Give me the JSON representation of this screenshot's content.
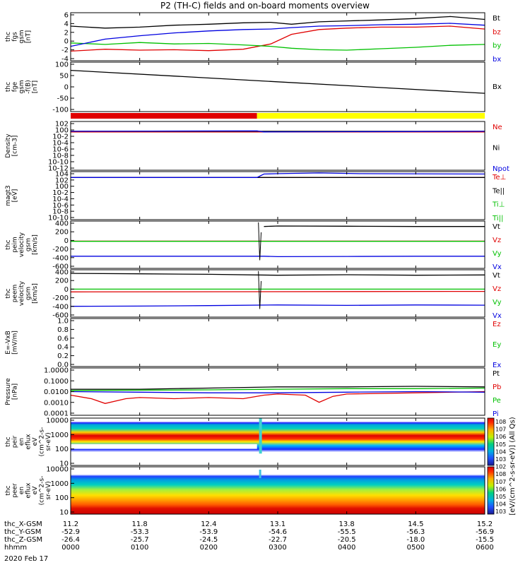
{
  "title": "P2 (TH-C) fields and on-board moments overview",
  "date_label": "2020 Feb 17",
  "colorbar_label": "[eV/(cm^2-s-sr-eV)] (All Qs)",
  "colorbar_ticks": [
    "10^8",
    "10^7",
    "10^6",
    "10^5",
    "10^4",
    "10^3",
    "10^2",
    "10^8",
    "10^7",
    "10^6",
    "10^5",
    "10^4",
    "10^3"
  ],
  "footer": {
    "rows": [
      {
        "label": "thc_X-GSM",
        "values": [
          "11.2",
          "11.8",
          "12.4",
          "13.1",
          "13.8",
          "14.5",
          "15.2"
        ]
      },
      {
        "label": "thc_Y-GSM",
        "values": [
          "-52.9",
          "-53.3",
          "-53.9",
          "-54.6",
          "-55.5",
          "-56.3",
          "-56.9"
        ]
      },
      {
        "label": "thc_Z-GSM",
        "values": [
          "-26.4",
          "-25.7",
          "-24.5",
          "-22.7",
          "-20.5",
          "-18.0",
          "-15.5"
        ]
      },
      {
        "label": "hhmm",
        "values": [
          "0000",
          "0100",
          "0200",
          "0300",
          "0400",
          "0500",
          "0600"
        ]
      }
    ]
  },
  "chart_data": [
    {
      "type": "line",
      "ylabel": [
        "thc",
        "fgs",
        "gsm",
        "[nT]"
      ],
      "yticks": [
        "6",
        "4",
        "2",
        "0",
        "-2",
        "-4"
      ],
      "ylim": [
        -4,
        6
      ],
      "legend": [
        {
          "name": "Bt",
          "color": "#000000"
        },
        {
          "name": "bz",
          "color": "#e00000"
        },
        {
          "name": "by",
          "color": "#00c000"
        },
        {
          "name": "bx",
          "color": "#0000e0"
        }
      ],
      "series": [
        {
          "name": "Bt",
          "color": "#000000",
          "x": [
            0,
            0.5,
            1,
            1.5,
            2,
            2.5,
            2.9,
            3.2,
            3.6,
            4,
            4.5,
            5,
            5.5,
            6
          ],
          "values": [
            3.2,
            2.8,
            3.0,
            3.4,
            3.6,
            3.9,
            4.0,
            3.6,
            4.1,
            4.3,
            4.5,
            4.8,
            5.2,
            4.6
          ]
        },
        {
          "name": "bz",
          "color": "#e00000",
          "x": [
            0,
            0.5,
            1,
            1.5,
            2,
            2.5,
            2.9,
            3.2,
            3.6,
            4,
            4.5,
            5,
            5.5,
            6
          ],
          "values": [
            -2.0,
            -1.6,
            -1.8,
            -1.7,
            -1.9,
            -1.6,
            -0.5,
            1.5,
            2.5,
            2.8,
            3.0,
            3.0,
            3.2,
            2.6
          ]
        },
        {
          "name": "by",
          "color": "#00c000",
          "x": [
            0,
            0.5,
            1,
            1.5,
            2,
            2.5,
            2.9,
            3.2,
            3.6,
            4,
            4.5,
            5,
            5.5,
            6
          ],
          "values": [
            -0.3,
            -0.6,
            -0.2,
            -0.5,
            -0.4,
            -0.7,
            -1.0,
            -1.4,
            -1.7,
            -1.8,
            -1.5,
            -1.2,
            -0.8,
            -0.6
          ]
        },
        {
          "name": "bx",
          "color": "#0000e0",
          "x": [
            0,
            0.5,
            1,
            1.5,
            2,
            2.5,
            2.9,
            3.2,
            3.6,
            4,
            4.5,
            5,
            5.5,
            6
          ],
          "values": [
            -1.0,
            0.5,
            1.2,
            1.8,
            2.2,
            2.5,
            2.6,
            2.9,
            3.2,
            3.3,
            3.5,
            3.6,
            3.8,
            3.4
          ]
        }
      ]
    },
    {
      "type": "line",
      "ylabel": [
        "thc",
        "fge",
        "gsm",
        "-f(B)",
        "[nT]"
      ],
      "yticks": [
        "100",
        "50",
        "0",
        "-50",
        "-100"
      ],
      "ylim": [
        -130,
        100
      ],
      "legend": [
        {
          "name": "Bx",
          "color": "#000000"
        }
      ],
      "series": [
        {
          "name": "Bx",
          "color": "#000000",
          "x": [
            0,
            6
          ],
          "values": [
            62,
            -45
          ]
        }
      ]
    },
    {
      "type": "bar",
      "name": "mode bar",
      "segments": [
        {
          "x0": 0,
          "x1": 2.7,
          "color": "#e00000"
        },
        {
          "x0": 2.7,
          "x1": 6,
          "color": "#ffff00"
        }
      ]
    },
    {
      "type": "line",
      "scale": "log",
      "ylabel": [
        "Density",
        "[cm-3]"
      ],
      "yticks": [
        "10^2",
        "10^0",
        "10^-2",
        "10^-4",
        "10^-6",
        "10^-8",
        "10^-10",
        "10^-12"
      ],
      "ylim": [
        -12,
        2
      ],
      "legend": [
        {
          "name": "Ne",
          "color": "#e00000"
        },
        {
          "name": "Ni",
          "color": "#000000"
        },
        {
          "name": "Npot",
          "color": "#0000e0"
        }
      ],
      "series": [
        {
          "name": "Ne",
          "color": "#e00000",
          "x": [
            0,
            6
          ],
          "values": [
            0.1,
            0.1
          ]
        },
        {
          "name": "Ni",
          "color": "#000000",
          "x": [
            0,
            6
          ],
          "values": [
            0.15,
            0.15
          ]
        },
        {
          "name": "Npot",
          "color": "#0000e0",
          "x": [
            0,
            2.7,
            2.8,
            6
          ],
          "values": [
            0.15,
            0.2,
            0.1,
            0.15
          ]
        }
      ]
    },
    {
      "type": "line",
      "scale": "log",
      "ylabel": [
        "magt3",
        "[eV]"
      ],
      "yticks": [
        "10^4",
        "10^2",
        "10^0",
        "10^-2",
        "10^-4",
        "10^-6",
        "10^-8",
        "10^-10"
      ],
      "ylim": [
        -10,
        4
      ],
      "legend": [
        {
          "name": "Te⊥",
          "color": "#e00000"
        },
        {
          "name": "Te||",
          "color": "#000000"
        },
        {
          "name": "Ti⊥",
          "color": "#00c000"
        },
        {
          "name": "Ti||",
          "color": "#00c000"
        }
      ],
      "series": [
        {
          "name": "Te⊥",
          "color": "#e00000",
          "x": [
            0,
            6
          ],
          "values": [
            2.3,
            2.3
          ]
        },
        {
          "name": "Te||",
          "color": "#000000",
          "x": [
            0,
            6
          ],
          "values": [
            2.3,
            2.3
          ]
        },
        {
          "name": "Ti⊥",
          "color": "#0000e0",
          "x": [
            0,
            2.7,
            2.8,
            3.0,
            3.6,
            4.2,
            6
          ],
          "values": [
            2.3,
            2.3,
            3.3,
            3.4,
            3.6,
            3.4,
            3.3
          ]
        }
      ]
    },
    {
      "type": "line",
      "ylabel": [
        "thc",
        "peim",
        "velocity",
        "gsm",
        "[km/s]"
      ],
      "yticks": [
        "400",
        "200",
        "0",
        "-200",
        "-400",
        "-600"
      ],
      "ylim": [
        -600,
        450
      ],
      "legend": [
        {
          "name": "Vt",
          "color": "#000000"
        },
        {
          "name": "Vz",
          "color": "#e00000"
        },
        {
          "name": "Vy",
          "color": "#00c000"
        },
        {
          "name": "Vx",
          "color": "#0000e0"
        }
      ],
      "series": [
        {
          "name": "Vt",
          "color": "#000000",
          "x": [
            2.8,
            3.0,
            4,
            5,
            6
          ],
          "values": [
            330,
            340,
            335,
            330,
            330
          ]
        },
        {
          "name": "Vz",
          "color": "#e00000",
          "x": [
            0,
            6
          ],
          "values": [
            5,
            5
          ]
        },
        {
          "name": "Vy",
          "color": "#00c000",
          "x": [
            0,
            6
          ],
          "values": [
            0,
            0
          ]
        },
        {
          "name": "Vx",
          "color": "#0000e0",
          "x": [
            0,
            1,
            2,
            2.8,
            3.0,
            4,
            5,
            6
          ],
          "values": [
            -330,
            -330,
            -330,
            -330,
            -340,
            -335,
            -330,
            -330
          ]
        }
      ]
    },
    {
      "type": "line",
      "ylabel": [
        "thc",
        "peem",
        "velocity",
        "gsm",
        "[km/s]"
      ],
      "yticks": [
        "400",
        "200",
        "0",
        "-200",
        "-400",
        "-600"
      ],
      "ylim": [
        -600,
        450
      ],
      "legend": [
        {
          "name": "Vt",
          "color": "#000000"
        },
        {
          "name": "Vz",
          "color": "#e00000"
        },
        {
          "name": "Vy",
          "color": "#00c000"
        },
        {
          "name": "Vx",
          "color": "#0000e0"
        }
      ],
      "series": [
        {
          "name": "Vt",
          "color": "#000000",
          "x": [
            0,
            1,
            2,
            3,
            4,
            5,
            6
          ],
          "values": [
            370,
            360,
            350,
            330,
            340,
            330,
            335
          ]
        },
        {
          "name": "Vz",
          "color": "#e00000",
          "x": [
            0,
            6
          ],
          "values": [
            -40,
            -30
          ]
        },
        {
          "name": "Vy",
          "color": "#00c000",
          "x": [
            0,
            6
          ],
          "values": [
            20,
            20
          ]
        },
        {
          "name": "Vx",
          "color": "#0000e0",
          "x": [
            0,
            1,
            2,
            3,
            4,
            5,
            6
          ],
          "values": [
            -360,
            -355,
            -345,
            -330,
            -340,
            -330,
            -335
          ]
        }
      ]
    },
    {
      "type": "line",
      "ylabel": [
        "E=-VxB",
        "[mV/m]"
      ],
      "yticks": [
        "1.0",
        "0.8",
        "0.6",
        "0.4",
        "0.2",
        "0.0"
      ],
      "ylim": [
        0,
        1
      ],
      "legend": [
        {
          "name": "Ez",
          "color": "#e00000"
        },
        {
          "name": "Ey",
          "color": "#00c000"
        },
        {
          "name": "Ex",
          "color": "#0000e0"
        }
      ],
      "series": []
    },
    {
      "type": "line",
      "scale": "log",
      "ylabel": [
        "Pressure",
        "[nPa]"
      ],
      "yticks": [
        "1.0000",
        "0.1000",
        "0.0100",
        "0.0010",
        "0.0001"
      ],
      "ylim": [
        -4,
        0
      ],
      "legend": [
        {
          "name": "Pt",
          "color": "#000000"
        },
        {
          "name": "Pb",
          "color": "#e00000"
        },
        {
          "name": "Pe",
          "color": "#00c000"
        },
        {
          "name": "Pi",
          "color": "#0000e0"
        }
      ],
      "series": [
        {
          "name": "Pt",
          "color": "#000000",
          "x": [
            0,
            1,
            2,
            3,
            4,
            5,
            6
          ],
          "values": [
            -1.8,
            -1.8,
            -1.7,
            -1.6,
            -1.6,
            -1.55,
            -1.6
          ]
        },
        {
          "name": "Pb",
          "color": "#e00000",
          "x": [
            0,
            0.3,
            0.5,
            0.8,
            1,
            1.5,
            2,
            2.5,
            2.8,
            3.0,
            3.4,
            3.6,
            3.8,
            4,
            5,
            6
          ],
          "values": [
            -2.3,
            -2.6,
            -3.0,
            -2.6,
            -2.5,
            -2.6,
            -2.5,
            -2.6,
            -2.3,
            -2.2,
            -2.3,
            -2.9,
            -2.4,
            -2.2,
            -2.1,
            -2.0
          ]
        },
        {
          "name": "Pe",
          "color": "#00c000",
          "x": [
            0,
            2,
            3,
            4,
            5,
            6
          ],
          "values": [
            -1.9,
            -1.85,
            -1.8,
            -1.75,
            -1.75,
            -1.7
          ]
        },
        {
          "name": "Pi",
          "color": "#0000e0",
          "x": [
            0,
            1,
            2,
            2.8,
            3.0,
            4,
            5,
            6
          ],
          "values": [
            -2.0,
            -2.05,
            -2.1,
            -2.1,
            -2.1,
            -2.05,
            -2.0,
            -2.05
          ]
        }
      ]
    },
    {
      "type": "heatmap",
      "ylabel": [
        "thc",
        "peir",
        "en",
        "eflux",
        "eV",
        "(cm^2-s-",
        "sr-eV)"
      ],
      "yticks": [
        "10000",
        "1000",
        "100",
        "10"
      ],
      "ylim": [
        0.7,
        4.3
      ],
      "colorbar": [
        "10^8",
        "10^7",
        "10^6",
        "10^5",
        "10^4",
        "10^3",
        "10^2"
      ]
    },
    {
      "type": "heatmap",
      "ylabel": [
        "thc",
        "peer",
        "en",
        "eflux",
        "eV",
        "(cm^2-s-",
        "sr-eV)"
      ],
      "yticks": [
        "10000",
        "1000",
        "100",
        "10"
      ],
      "ylim": [
        0.7,
        4.3
      ],
      "colorbar": [
        "10^8",
        "10^7",
        "10^6",
        "10^5",
        "10^4",
        "10^3"
      ]
    }
  ]
}
